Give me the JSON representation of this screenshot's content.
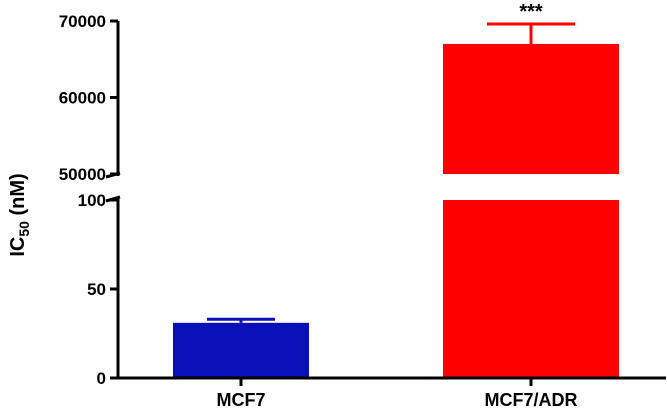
{
  "chart_data": {
    "type": "bar",
    "axis_break": true,
    "categories": [
      "MCF7",
      "MCF7/ADR"
    ],
    "values": [
      31,
      67000
    ],
    "error_plus": [
      2,
      2600
    ],
    "colors": [
      "#0a10b8",
      "#ff0000"
    ],
    "ylabel": "IC",
    "ylabel_sub": "50",
    "ylabel_unit": " (nM)",
    "lower_segment": {
      "ylim": [
        0,
        100
      ],
      "ticks": [
        0,
        50,
        100
      ],
      "tick_labels": [
        "0",
        "50",
        "100"
      ]
    },
    "upper_segment": {
      "ylim": [
        50000,
        70000
      ],
      "ticks": [
        50000,
        60000,
        70000
      ],
      "tick_labels": [
        "50000",
        "60000",
        "70000"
      ]
    },
    "annotations": [
      {
        "category": "MCF7/ADR",
        "text": "***"
      }
    ],
    "grid": false,
    "legend": "none"
  }
}
